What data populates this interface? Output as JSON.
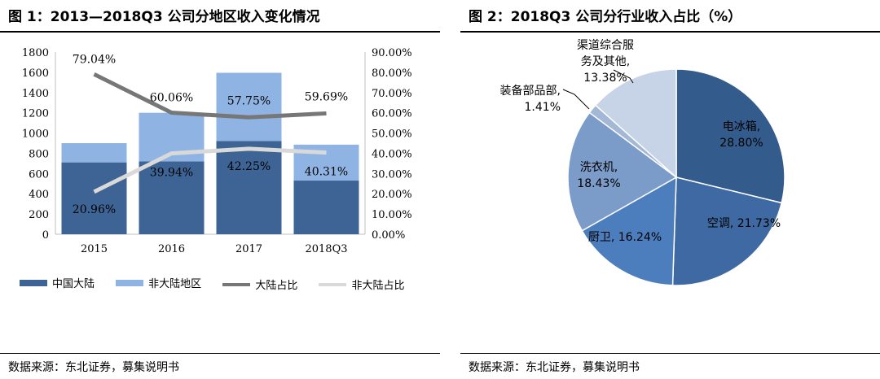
{
  "left": {
    "title": "图 1：2013—2018Q3 公司分地区收入变化情况",
    "source": "数据来源：东北证券，募集说明书"
  },
  "right": {
    "title": "图 2：2018Q3 公司分行业收入占比（%）",
    "source": "数据来源：东北证券，募集说明书"
  },
  "chart_data": [
    {
      "type": "bar",
      "stacked": true,
      "categories": [
        "2015",
        "2016",
        "2017",
        "2018Q3"
      ],
      "series": [
        {
          "name": "中国大陆",
          "type": "bar",
          "axis": "left",
          "color": "#3d6495",
          "values": [
            710,
            720,
            920,
            530
          ]
        },
        {
          "name": "非大陆地区",
          "type": "bar",
          "axis": "left",
          "color": "#8fb4e3",
          "values": [
            190,
            480,
            675,
            355
          ]
        },
        {
          "name": "大陆占比",
          "type": "line",
          "axis": "right",
          "color": "#777777",
          "values": [
            79.04,
            60.06,
            57.75,
            59.69
          ],
          "labels": [
            "79.04%",
            "60.06%",
            "57.75%",
            "59.69%"
          ]
        },
        {
          "name": "非大陆占比",
          "type": "line",
          "axis": "right",
          "color": "#d9d9d9",
          "values": [
            20.96,
            39.94,
            42.25,
            40.31
          ],
          "labels": [
            "20.96%",
            "39.94%",
            "42.25%",
            "40.31%"
          ]
        }
      ],
      "ylim": [
        0,
        1800
      ],
      "y_ticks": [
        "0",
        "200",
        "400",
        "600",
        "800",
        "1000",
        "1200",
        "1400",
        "1600",
        "1800"
      ],
      "y2lim": [
        0,
        90
      ],
      "y2_ticks": [
        "0.00%",
        "10.00%",
        "20.00%",
        "30.00%",
        "40.00%",
        "50.00%",
        "60.00%",
        "70.00%",
        "80.00%",
        "90.00%"
      ],
      "grid": false,
      "legend_position": "bottom"
    },
    {
      "type": "pie",
      "slices": [
        {
          "label": "电冰箱",
          "value": 28.8,
          "text": "28.80%",
          "color": "#335b8c"
        },
        {
          "label": "空调",
          "value": 21.73,
          "text": "21.73%",
          "color": "#3e69a2"
        },
        {
          "label": "厨卫",
          "value": 16.24,
          "text": "16.24%",
          "color": "#4c7dbd"
        },
        {
          "label": "洗衣机",
          "value": 18.43,
          "text": "18.43%",
          "color": "#7b9cc9"
        },
        {
          "label": "装备部品部",
          "value": 1.41,
          "text": "1.41%",
          "color": "#a3b7d6"
        },
        {
          "label": "渠道综合服务及其他",
          "value": 13.38,
          "text": "13.38%",
          "color": "#c7d3e6"
        }
      ],
      "labels_display": {
        "fridge": [
          "电冰箱,",
          "28.80%"
        ],
        "ac": [
          "空调, 21.73%"
        ],
        "kitchen": [
          "厨卫, 16.24%"
        ],
        "washer": [
          "洗衣机,",
          "18.43%"
        ],
        "equip": [
          "装备部品部,",
          "1.41%"
        ],
        "channel": [
          "渠道综合服",
          "务及其他,",
          "13.38%"
        ]
      }
    }
  ]
}
